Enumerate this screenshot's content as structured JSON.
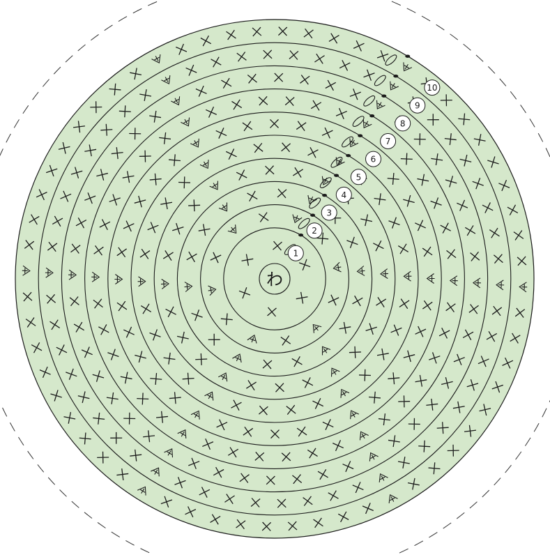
{
  "diagram": {
    "center_label": "わ",
    "ring_count": 10,
    "round_labels": [
      "1",
      "2",
      "3",
      "4",
      "5",
      "6",
      "7",
      "8",
      "9",
      "10"
    ],
    "stitch_counts_per_round": [
      6,
      12,
      18,
      24,
      30,
      36,
      42,
      48,
      54,
      60
    ],
    "symbols": {
      "magic_ring": "わ",
      "single_crochet": "×",
      "increase": "+",
      "chain": "chain-oval",
      "slip_stitch": "slip-dot"
    },
    "colors": {
      "fill": "#d5e8cb",
      "line": "#1a1a1a",
      "background": "#ffffff"
    }
  }
}
